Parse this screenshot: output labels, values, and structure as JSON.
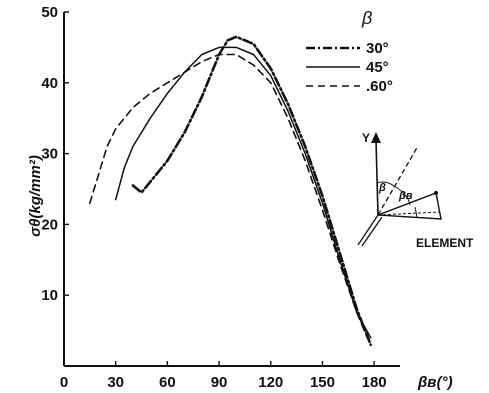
{
  "chart_data": {
    "type": "line",
    "title": "",
    "xlabel": "βʙ(°)",
    "ylabel": "σθ(kg/mm²)",
    "xlim": [
      0,
      195
    ],
    "ylim": [
      0,
      50
    ],
    "x_ticks": [
      0,
      30,
      60,
      90,
      120,
      150,
      180
    ],
    "x_tick_labels": [
      "0",
      "30",
      "60",
      "90",
      "120",
      "150",
      "180"
    ],
    "y_ticks": [
      10,
      20,
      30,
      40,
      50
    ],
    "y_tick_labels": [
      "10",
      "20",
      "30",
      "40",
      "50"
    ],
    "grid": false,
    "legend": {
      "title": "β",
      "placement": "top-right",
      "entries": [
        "30°",
        "45°",
        ".60°"
      ]
    },
    "series": [
      {
        "name": "30°",
        "style": "dash-dot",
        "x": [
          40,
          45,
          50,
          60,
          70,
          80,
          90,
          95,
          100,
          110,
          120,
          130,
          140,
          150,
          160,
          170,
          178
        ],
        "y": [
          25.5,
          24.5,
          26,
          29,
          33,
          38,
          44,
          46,
          46.5,
          45.5,
          42,
          37,
          31,
          24,
          16,
          8,
          3
        ]
      },
      {
        "name": "45°",
        "style": "solid",
        "x": [
          30,
          35,
          40,
          50,
          60,
          70,
          80,
          90,
          100,
          110,
          120,
          130,
          140,
          150,
          160,
          170,
          178
        ],
        "y": [
          23.5,
          28,
          31,
          35,
          38.5,
          41.5,
          44,
          45,
          45,
          44,
          41,
          36,
          30,
          23,
          15,
          7.5,
          4
        ]
      },
      {
        "name": ".60°",
        "style": "dashed",
        "x": [
          15,
          20,
          25,
          30,
          40,
          50,
          60,
          70,
          80,
          90,
          100,
          110,
          120,
          130,
          140,
          150,
          160,
          170,
          176
        ],
        "y": [
          23,
          27,
          31,
          33.5,
          36.5,
          38.5,
          40,
          41.5,
          43,
          44,
          44,
          42.5,
          40,
          35,
          29,
          22,
          14.5,
          7.5,
          4
        ]
      }
    ],
    "annotations": [
      "Y",
      "β",
      "βʙ",
      "ELEMENT"
    ]
  }
}
